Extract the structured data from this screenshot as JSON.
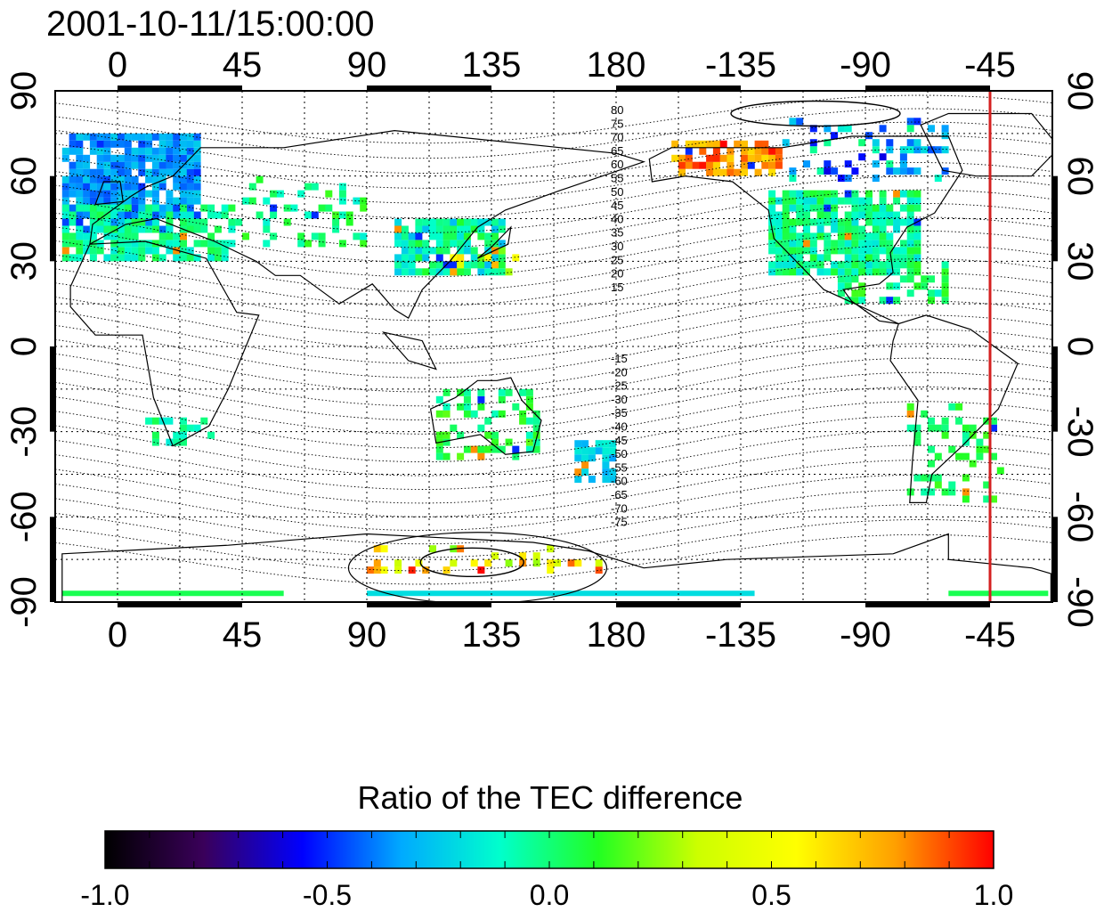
{
  "map": {
    "timestamp": "2001-10-11/15:00:00",
    "longitude_ticks": [
      "0",
      "45",
      "90",
      "135",
      "180",
      "-135",
      "-90",
      "-45"
    ],
    "latitude_ticks": [
      "90",
      "60",
      "30",
      "0",
      "-30",
      "-60",
      "-90"
    ],
    "contour_labels_north": [
      "80",
      "75",
      "70",
      "65",
      "60",
      "55",
      "50",
      "45",
      "40",
      "35",
      "30",
      "25",
      "20",
      "15"
    ],
    "contour_labels_south": [
      "-15",
      "-20",
      "-25",
      "-30",
      "-35",
      "-40",
      "-45",
      "-50",
      "-55",
      "-60",
      "-65",
      "-70",
      "-75"
    ],
    "marker_line_longitude": "-45",
    "marker_line_color": "#d42020"
  },
  "colorbar": {
    "title": "Ratio of the TEC difference",
    "tick_labels": [
      "-1.0",
      "-0.5",
      "0.0",
      "0.5",
      "1.0"
    ],
    "range": [
      -1.0,
      1.0
    ],
    "colors": [
      "#000000",
      "#3a005a",
      "#0000ff",
      "#00aaff",
      "#00ffcc",
      "#22ff22",
      "#ccff00",
      "#ffff00",
      "#ffa000",
      "#ff0000"
    ]
  }
}
